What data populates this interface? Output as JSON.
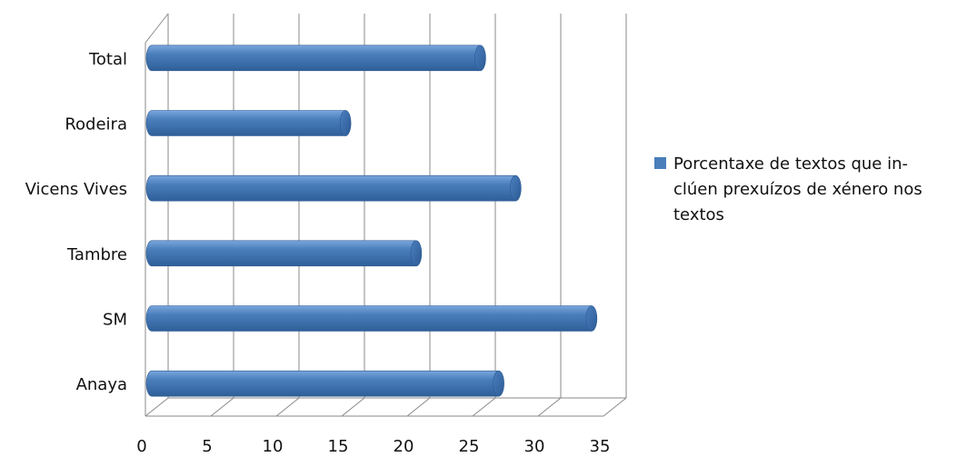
{
  "chart_data": {
    "type": "bar",
    "orientation": "horizontal",
    "style": "3d-cylinder",
    "title": "",
    "xlabel": "",
    "ylabel": "",
    "categories": [
      "Anaya",
      "SM",
      "Tambre",
      "Vicens Vives",
      "Rodeira",
      "Total"
    ],
    "series": [
      {
        "name": "Porcentaxe de textos que in- clúen prexuízos de xénero nos textos",
        "values": [
          26.5,
          33.6,
          20.2,
          27.8,
          14.8,
          25.1
        ],
        "color": "#4a7ebb"
      }
    ],
    "xlim": [
      0,
      35
    ],
    "xticks": [
      0,
      5,
      10,
      15,
      20,
      25,
      30,
      35
    ],
    "grid": "vertical",
    "legend_position": "right"
  },
  "legend": {
    "lines": [
      "Porcentaxe de textos que in-",
      "clúen prexuízos de xénero nos",
      "textos"
    ]
  }
}
